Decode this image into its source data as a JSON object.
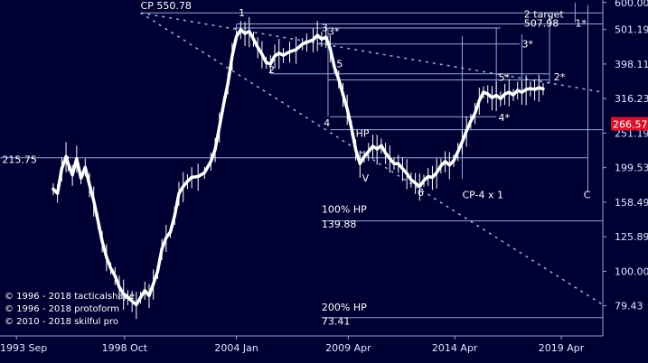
{
  "chart_data": {
    "type": "line",
    "colors": {
      "background": "#000033",
      "price": "#ffffff",
      "guide": "#8fa8d8",
      "current_badge": "#d9122b"
    },
    "x_axis": {
      "ticks": [
        {
          "label": "1993 Sep",
          "date": 1993.67
        },
        {
          "label": "1998 Oct",
          "date": 1998.75
        },
        {
          "label": "2004 Jan",
          "date": 2004.0
        },
        {
          "label": "2009 Apr",
          "date": 2009.25
        },
        {
          "label": "2014 Apr",
          "date": 2014.25
        },
        {
          "label": "2019 Apr",
          "date": 2019.25
        }
      ],
      "range": [
        1992.9,
        2021.2
      ]
    },
    "y_axis": {
      "scale": "log",
      "ticks": [
        "600.00",
        "501.19",
        "398.11",
        "316.23",
        "251.19",
        "199.53",
        "158.49",
        "125.89",
        "100.00",
        "79.43"
      ],
      "range": [
        65,
        610
      ],
      "current_value": "266.57"
    },
    "series": [
      {
        "points": [
          [
            1995.4,
            173
          ],
          [
            1995.6,
            168
          ],
          [
            1995.8,
            198
          ],
          [
            1996.0,
            215
          ],
          [
            1996.1,
            205
          ],
          [
            1996.3,
            190
          ],
          [
            1996.5,
            212
          ],
          [
            1996.7,
            186
          ],
          [
            1996.9,
            200
          ],
          [
            1997.1,
            178
          ],
          [
            1997.3,
            160
          ],
          [
            1997.5,
            140
          ],
          [
            1997.7,
            122
          ],
          [
            1997.9,
            110
          ],
          [
            1998.1,
            102
          ],
          [
            1998.3,
            97
          ],
          [
            1998.5,
            90
          ],
          [
            1998.7,
            86
          ],
          [
            1998.9,
            84
          ],
          [
            1999.1,
            82
          ],
          [
            1999.3,
            80
          ],
          [
            1999.5,
            84
          ],
          [
            1999.7,
            88
          ],
          [
            1999.9,
            85
          ],
          [
            2000.1,
            92
          ],
          [
            2000.3,
            100
          ],
          [
            2000.5,
            116
          ],
          [
            2000.7,
            125
          ],
          [
            2000.9,
            130
          ],
          [
            2001.1,
            145
          ],
          [
            2001.3,
            168
          ],
          [
            2001.5,
            176
          ],
          [
            2001.7,
            182
          ],
          [
            2001.9,
            187
          ],
          [
            2002.2,
            188
          ],
          [
            2002.5,
            193
          ],
          [
            2002.8,
            208
          ],
          [
            2003.0,
            225
          ],
          [
            2003.2,
            262
          ],
          [
            2003.4,
            305
          ],
          [
            2003.6,
            350
          ],
          [
            2003.8,
            420
          ],
          [
            2004.0,
            478
          ],
          [
            2004.2,
            500
          ],
          [
            2004.4,
            488
          ],
          [
            2004.6,
            495
          ],
          [
            2004.8,
            470
          ],
          [
            2005.0,
            445
          ],
          [
            2005.2,
            425
          ],
          [
            2005.4,
            402
          ],
          [
            2005.6,
            398
          ],
          [
            2005.8,
            420
          ],
          [
            2006.0,
            428
          ],
          [
            2006.2,
            422
          ],
          [
            2006.5,
            432
          ],
          [
            2006.8,
            438
          ],
          [
            2007.1,
            455
          ],
          [
            2007.3,
            460
          ],
          [
            2007.6,
            468
          ],
          [
            2007.8,
            482
          ],
          [
            2008.0,
            470
          ],
          [
            2008.2,
            476
          ],
          [
            2008.4,
            442
          ],
          [
            2008.6,
            390
          ],
          [
            2008.8,
            360
          ],
          [
            2009.0,
            325
          ],
          [
            2009.2,
            295
          ],
          [
            2009.4,
            260
          ],
          [
            2009.6,
            225
          ],
          [
            2009.8,
            205
          ],
          [
            2010.0,
            215
          ],
          [
            2010.2,
            222
          ],
          [
            2010.4,
            230
          ],
          [
            2010.6,
            226
          ],
          [
            2010.8,
            231
          ],
          [
            2011.0,
            220
          ],
          [
            2011.2,
            212
          ],
          [
            2011.4,
            205
          ],
          [
            2011.6,
            205
          ],
          [
            2011.8,
            198
          ],
          [
            2012.0,
            192
          ],
          [
            2012.2,
            184
          ],
          [
            2012.4,
            180
          ],
          [
            2012.6,
            176
          ],
          [
            2012.8,
            183
          ],
          [
            2013.0,
            188
          ],
          [
            2013.2,
            187
          ],
          [
            2013.4,
            193
          ],
          [
            2013.6,
            202
          ],
          [
            2013.8,
            208
          ],
          [
            2014.0,
            203
          ],
          [
            2014.2,
            209
          ],
          [
            2014.4,
            222
          ],
          [
            2014.6,
            237
          ],
          [
            2014.8,
            255
          ],
          [
            2015.0,
            272
          ],
          [
            2015.2,
            287
          ],
          [
            2015.4,
            312
          ],
          [
            2015.6,
            330
          ],
          [
            2015.8,
            326
          ],
          [
            2016.0,
            318
          ],
          [
            2016.2,
            323
          ],
          [
            2016.4,
            316
          ],
          [
            2016.6,
            326
          ],
          [
            2016.8,
            330
          ],
          [
            2017.0,
            324
          ],
          [
            2017.2,
            334
          ],
          [
            2017.4,
            330
          ],
          [
            2017.6,
            336
          ],
          [
            2017.8,
            338
          ],
          [
            2018.0,
            336
          ],
          [
            2018.2,
            340
          ],
          [
            2018.4,
            337
          ]
        ]
      }
    ],
    "h_lines": [
      {
        "y": 560,
        "x0": 1999.5,
        "x1": 2021.2
      },
      {
        "y": 520,
        "x0": 2004.0,
        "x1": 2021.2
      },
      {
        "y": 506,
        "x0": 2003.9,
        "x1": 2016.4
      },
      {
        "y": 455,
        "x0": 2007.8,
        "x1": 2017.3
      },
      {
        "y": 373,
        "x0": 2005.6,
        "x1": 2018.7
      },
      {
        "y": 358,
        "x0": 2008.3,
        "x1": 2018.7
      },
      {
        "y": 280,
        "x0": 2008.4,
        "x1": 2016.2
      },
      {
        "y": 257,
        "x0": 2008.4,
        "x1": 2021.2
      },
      {
        "y": 213,
        "x0": 1992.9,
        "x1": 2020.5
      },
      {
        "y": 139.88,
        "x0": 2008.0,
        "x1": 2021.2
      },
      {
        "y": 73.41,
        "x0": 2008.0,
        "x1": 2021.2
      }
    ],
    "v_lines": [
      {
        "x": 2004.0,
        "y0": 520,
        "y1": 470
      },
      {
        "x": 2008.3,
        "y0": 506,
        "y1": 280
      },
      {
        "x": 2014.6,
        "y0": 480,
        "y1": 185
      },
      {
        "x": 2016.2,
        "y0": 506,
        "y1": 330
      },
      {
        "x": 2017.4,
        "y0": 485,
        "y1": 330
      },
      {
        "x": 2018.7,
        "y0": 555,
        "y1": 350
      },
      {
        "x": 2019.9,
        "y0": 600,
        "y1": 525
      },
      {
        "x": 2020.5,
        "y0": 590,
        "y1": 170
      }
    ],
    "dotted_lines": [
      {
        "from": [
          1999.5,
          560
        ],
        "to": [
          2021.2,
          330
        ]
      },
      {
        "from": [
          1999.5,
          560
        ],
        "to": [
          2021.2,
          80
        ]
      }
    ],
    "annotations": [
      {
        "text": "CP 550.78",
        "x": 1999.5,
        "y": 575
      },
      {
        "text": "1",
        "x": 2004.1,
        "y": 548
      },
      {
        "text": "2",
        "x": 2005.5,
        "y": 375
      },
      {
        "text": "3",
        "x": 2008.0,
        "y": 496
      },
      {
        "text": "3*",
        "x": 2008.3,
        "y": 484
      },
      {
        "text": "5",
        "x": 2008.7,
        "y": 390
      },
      {
        "text": "4",
        "x": 2008.1,
        "y": 263
      },
      {
        "text": "HP",
        "x": 2009.6,
        "y": 245
      },
      {
        "text": "V",
        "x": 2009.9,
        "y": 182
      },
      {
        "text": "6",
        "x": 2012.5,
        "y": 165
      },
      {
        "text": "CP-4 x 1",
        "x": 2014.6,
        "y": 163
      },
      {
        "text": "5*",
        "x": 2016.3,
        "y": 356
      },
      {
        "text": "4*",
        "x": 2016.3,
        "y": 272
      },
      {
        "text": "3*",
        "x": 2017.4,
        "y": 445
      },
      {
        "text": "2*",
        "x": 2018.9,
        "y": 357
      },
      {
        "text": "2 target",
        "x": 2017.5,
        "y": 543
      },
      {
        "text": "507.98",
        "x": 2017.5,
        "y": 510
      },
      {
        "text": "1*",
        "x": 2019.9,
        "y": 510
      },
      {
        "text": "100% HP",
        "x": 2008.0,
        "y": 148
      },
      {
        "text": "139.88",
        "x": 2008.0,
        "y": 134
      },
      {
        "text": "200% HP",
        "x": 2008.0,
        "y": 77
      },
      {
        "text": "73.41",
        "x": 2008.0,
        "y": 70
      },
      {
        "text": "215.75",
        "x": 1993.0,
        "y": 206
      },
      {
        "text": "C",
        "x": 2020.3,
        "y": 163
      }
    ],
    "copyright": [
      "© 1996 - 2018 tacticalshape",
      "© 1996 - 2018 protoform",
      "© 2010 - 2018 skilful pro"
    ]
  }
}
